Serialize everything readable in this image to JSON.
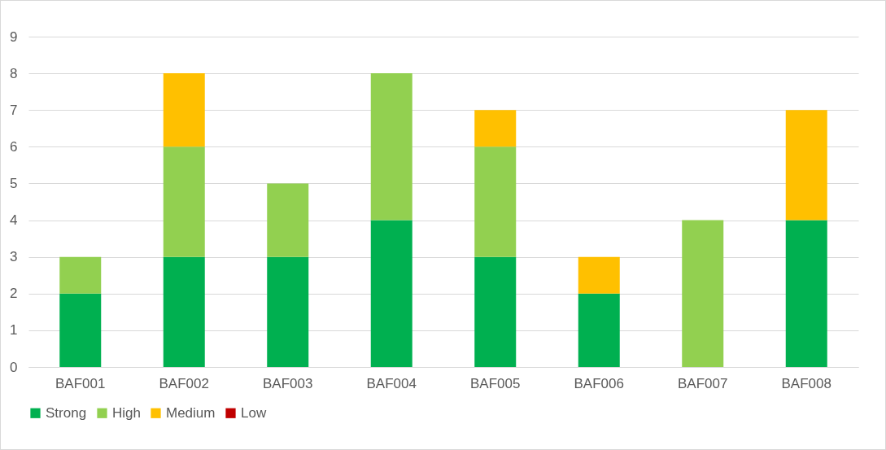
{
  "chart_data": {
    "type": "bar",
    "stacked": true,
    "categories": [
      "BAF001",
      "BAF002",
      "BAF003",
      "BAF004",
      "BAF005",
      "BAF006",
      "BAF007",
      "BAF008"
    ],
    "series": [
      {
        "name": "Strong",
        "color": "#00b050",
        "values": [
          2,
          3,
          3,
          4,
          3,
          2,
          0,
          4
        ]
      },
      {
        "name": "High",
        "color": "#92d050",
        "values": [
          1,
          3,
          2,
          4,
          3,
          0,
          4,
          0
        ]
      },
      {
        "name": "Medium",
        "color": "#ffc000",
        "values": [
          0,
          2,
          0,
          0,
          1,
          1,
          0,
          3
        ]
      },
      {
        "name": "Low",
        "color": "#c00000",
        "values": [
          0,
          0,
          0,
          0,
          0,
          0,
          0,
          0
        ]
      }
    ],
    "ylim": [
      0,
      9
    ],
    "yticks": [
      0,
      1,
      2,
      3,
      4,
      5,
      6,
      7,
      8,
      9
    ],
    "grid": "y",
    "legend": "bottom"
  }
}
